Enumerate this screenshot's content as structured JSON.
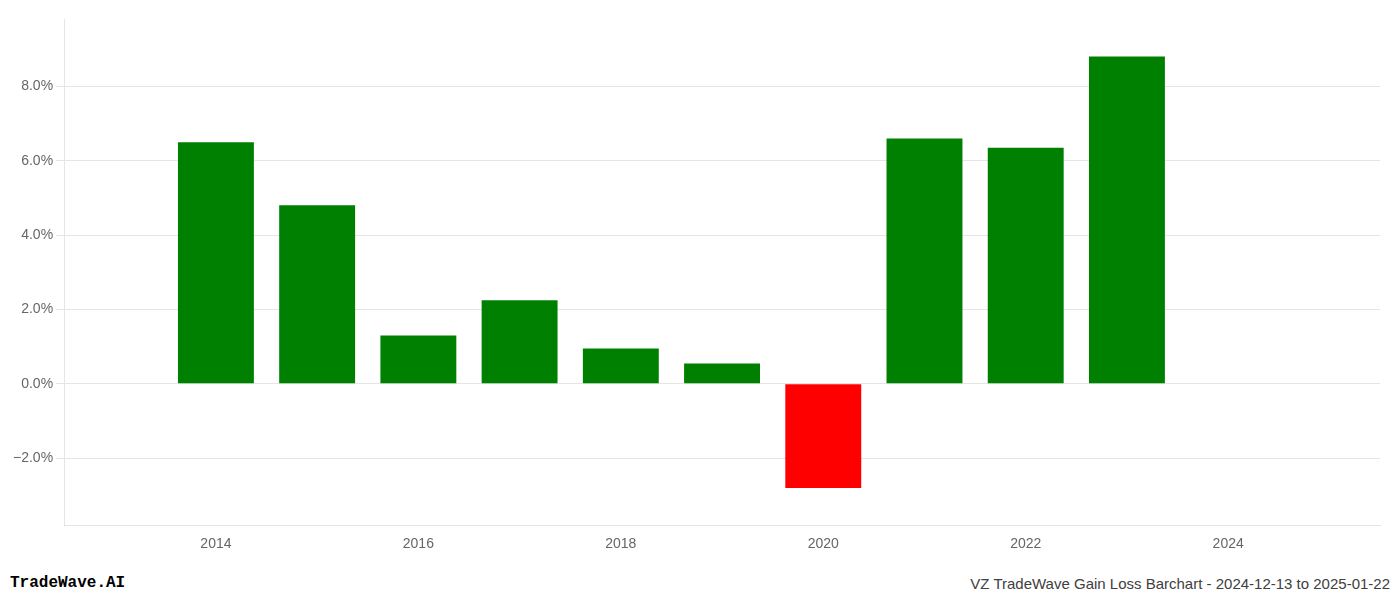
{
  "chart_data": {
    "type": "bar",
    "title": "VZ TradeWave Gain Loss Barchart - 2024-12-13 to 2025-01-22",
    "annotations": [
      "TradeWave.AI"
    ],
    "x": [
      2014,
      2015,
      2016,
      2017,
      2018,
      2019,
      2020,
      2021,
      2022,
      2023
    ],
    "values": [
      0.065,
      0.048,
      0.013,
      0.0225,
      0.0095,
      0.0055,
      -0.028,
      0.066,
      0.0635,
      0.088
    ],
    "colors": [
      "#008000",
      "#008000",
      "#008000",
      "#008000",
      "#008000",
      "#008000",
      "#ff0000",
      "#008000",
      "#008000",
      "#008000"
    ],
    "xlim": [
      2012.5,
      2025.5
    ],
    "xticks": [
      2014,
      2016,
      2018,
      2020,
      2022,
      2024
    ],
    "ylim": [
      -0.038,
      0.098
    ],
    "yticks": [
      {
        "value": -0.02,
        "label": "−2.0%"
      },
      {
        "value": 0.0,
        "label": "0.0%"
      },
      {
        "value": 0.02,
        "label": "2.0%"
      },
      {
        "value": 0.04,
        "label": "4.0%"
      },
      {
        "value": 0.06,
        "label": "6.0%"
      },
      {
        "value": 0.08,
        "label": "8.0%"
      }
    ],
    "grid": true
  }
}
